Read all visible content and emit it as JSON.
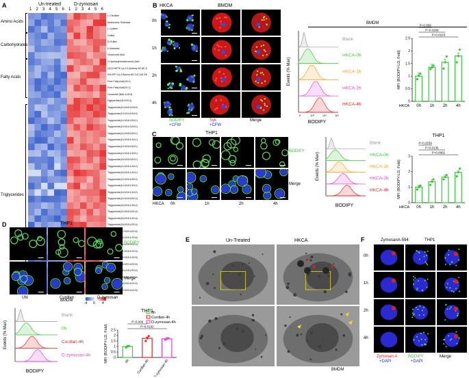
{
  "panels": {
    "A": {
      "label": "A",
      "header_untreated": "Un-treated",
      "header_dzymosan": "D-zymosan",
      "col_numbers": [
        "1",
        "2",
        "3",
        "4",
        "5",
        "6",
        "1",
        "2",
        "3",
        "4",
        "5",
        "6"
      ],
      "groups": [
        "Amino Acids",
        "Carbohydrates",
        "Fatty Acids",
        "Triglycerides"
      ],
      "rows": [
        "L-Citrulline",
        "Methionine Sulfoxide",
        "L-Cystine",
        "Gulitol",
        "D-Gulitol",
        "D-Mannitol",
        "Glucuronic Acid",
        "2-Hydroxyhexadecanoic Acid",
        "(±)13-HETE (±)-13-hydroxy-5Z,8Z,10E,14Z-Eicosatetraenoic Acid",
        "5,6-EET (±)-5-Epoxy-8Z,11Z,14Z-Eicosatrienoic Acid",
        "Free Fatty Acid(16:1)",
        "Free Fatty Acid(20:1)",
        "Ceramide [Nd0:1/18:0]",
        "Diglyceride(16:0/20:4)",
        "Triglyceride(14:0/16:0/16:0)",
        "Triglyceride(14:0/14:0/16:0)",
        "Triglyceride(14:0/16:0/16:1)",
        "Triglyceride(14:0/14:0/18:1)",
        "Triglyceride(14:0/18:0/16:1)",
        "Triglyceride(14:0/18:1/18:1)",
        "Triglyceride(14:0/16:0/18:1)",
        "Triglyceride(14:0/16:1/18:1)",
        "Triglyceride(16:0/16:0/16:1)",
        "Triglyceride(14:0/16:1/18:2)",
        "Triglyceride(16:0/16:1/18:1)",
        "Triglyceride(14:0/16:0/18:2)",
        "Triglyceride(14:0/18:1/18:2)",
        "Triglyceride(16:0/18:1/18:2)",
        "Triglyceride(14:0/16:0/20:4)",
        "Triglyceride(16:0/16:1/18:2)",
        "Triglyceride(14:0/16:0/20:4)",
        "Triglyceride(16:0/18:1/20:4)",
        "Triglyceride(16:0/18:2/20:4)",
        "Triglyceride(12:0/20:4/22:6)",
        "Triglyceride(16:0/18:1/22:6)",
        "Triglyceride(14:0/16:0/22:4)",
        "Triglyceride(14:0/18:1/22:4)",
        "Triglyceride(16:0/18:1/22:6)",
        "Triglyceride(16:0/20:4/22:6)",
        "Triglyceride(18:1/18:2/20:4)",
        "Triglyceride(14:0/20:4/22:6)",
        "Triglyceride(16:0/20:4/22:4)",
        "Triglyceride(10:0/20:4/22:6)"
      ],
      "footer": "BMDM",
      "scale_ticks": [
        "-4",
        "0",
        "4"
      ]
    },
    "B": {
      "label": "B",
      "cell_type": "HKCA",
      "cell_line": "BMDM",
      "time_rows": [
        "0h",
        "1h",
        "2h",
        "4h"
      ],
      "bottom_labels": [
        {
          "line1": "BODIPY",
          "line2": "+CFW"
        },
        {
          "line1": "Syk",
          "line2": "+CFW"
        },
        {
          "line1": "Merge",
          "line2": ""
        }
      ],
      "hist_title": "BMDM",
      "hist_ylabel": "Events (% Max)",
      "hist_xlabel": "BODIPY",
      "hist_xticks": [
        "0",
        "10³",
        "10⁴",
        "10⁵"
      ],
      "hist_legend": [
        {
          "label": "Blank",
          "color": "#9a9a9a"
        },
        {
          "label": "HKCA-0h",
          "color": "#3cc43c"
        },
        {
          "label": "HKCA-1h",
          "color": "#f2a21c"
        },
        {
          "label": "HKCA-2h",
          "color": "#e040e0"
        },
        {
          "label": "HKCA-4h",
          "color": "#e82020"
        }
      ]
    },
    "C": {
      "label": "C",
      "cell_line": "THP1",
      "row_labels": [
        "BODIPY",
        "Merge"
      ],
      "cond_label": "HKCA",
      "time_cols": [
        "0h",
        "1h",
        "2h",
        "4h"
      ],
      "hist_ylabel": "Events (% Max)",
      "hist_xlabel": "BODIPY",
      "hist_legend": [
        {
          "label": "Blank",
          "color": "#9a9a9a"
        },
        {
          "label": "HKCA-0h",
          "color": "#3cc43c"
        },
        {
          "label": "HKCA-1h",
          "color": "#f2a21c"
        },
        {
          "label": "HKCA-2h",
          "color": "#e040e0"
        },
        {
          "label": "HKCA-4h",
          "color": "#e82020"
        }
      ]
    },
    "D": {
      "label": "D",
      "cell_line": "THP1",
      "row_labels": [
        "BODIPY",
        "Merge"
      ],
      "cols": [
        "UN",
        "Curdlan",
        "D-zymosan"
      ],
      "hist_ylabel": "Events (% Max)",
      "hist_xlabel": "BODIPY",
      "hist_legend": [
        {
          "label": "Blank",
          "color": "#9a9a9a"
        },
        {
          "label": "0h",
          "color": "#3cc43c"
        },
        {
          "label": "Curdlan-4h",
          "color": "#e82020"
        },
        {
          "label": "D-zymosan-4h",
          "color": "#e040e0"
        }
      ]
    },
    "E": {
      "label": "E",
      "col_untreated": "Un-Treated",
      "col_hkca": "HKCA",
      "footer": "BMDM"
    },
    "F": {
      "label": "F",
      "header_zymosan": "ZymosanA-594",
      "header_cell": "THP1",
      "time_rows": [
        "0h",
        "1h",
        "2h",
        "4h"
      ],
      "bottom_labels": [
        {
          "line1": "Zymosan-A",
          "line2": "+DAPI"
        },
        {
          "line1": "BODIPY",
          "line2": "+DAPI"
        },
        {
          "line1": "Merge",
          "line2": ""
        }
      ]
    }
  },
  "chart_data": [
    {
      "id": "B-bar",
      "type": "bar",
      "title": "",
      "ylabel": "MFI (BODIPY-LD, Fold)",
      "xlabel_prefix": "HKCA",
      "categories": [
        "0h",
        "1h",
        "2h",
        "4h"
      ],
      "values": [
        1.0,
        1.35,
        1.55,
        1.8
      ],
      "points": [
        [
          0.88,
          1.02,
          1.1
        ],
        [
          1.28,
          1.35,
          1.42
        ],
        [
          1.3,
          1.55,
          1.78
        ],
        [
          1.55,
          1.8,
          2.05
        ]
      ],
      "ylim": [
        0,
        2.5
      ],
      "yticks": [
        0,
        0.5,
        1.0,
        1.5,
        2.0,
        2.5
      ],
      "pvalues": [
        "P=0.059",
        "P=0.0268",
        "P=0.0163"
      ],
      "bar_color": "#3cc43c"
    },
    {
      "id": "C-bar",
      "type": "bar",
      "title": "THP1",
      "ylabel": "MFI (BODIPY-LD, Fold)",
      "xlabel_prefix": "HKCA",
      "categories": [
        "0h",
        "1h",
        "2h",
        "4h"
      ],
      "values": [
        1.0,
        1.35,
        1.65,
        1.95
      ],
      "points": [
        [
          0.85,
          1.0,
          1.1
        ],
        [
          1.15,
          1.35,
          1.5
        ],
        [
          1.5,
          1.65,
          1.78
        ],
        [
          1.7,
          1.95,
          2.2
        ]
      ],
      "ylim": [
        0,
        3
      ],
      "yticks": [
        0,
        1,
        2,
        3
      ],
      "pvalues": [
        "P=0.2539",
        "P=0.0136",
        "P=0.0062"
      ],
      "bar_color": "#3cc43c"
    },
    {
      "id": "D-bar",
      "type": "bar",
      "title": "THP1",
      "ylabel": "MFI (BODIPY-LD, Fold)",
      "categories": [
        "0h",
        "Curdlan-4h",
        "D-zymosan-4h"
      ],
      "values": [
        1.0,
        1.75,
        1.7
      ],
      "points": [
        [
          0.9,
          1.0,
          1.05
        ],
        [
          1.5,
          1.75,
          1.95
        ],
        [
          1.62,
          1.7,
          1.75
        ]
      ],
      "ylim": [
        0,
        2.5
      ],
      "yticks": [
        0,
        0.5,
        1.0,
        1.5,
        2.0,
        2.5
      ],
      "pvalues": [
        "P=0.009",
        "P=0.0192"
      ],
      "bar_colors": [
        "#3cc43c",
        "#e82020",
        "#e040e0"
      ],
      "legend": [
        "0h",
        "Curdlan-4h",
        "D-zymosan-4h"
      ]
    }
  ]
}
